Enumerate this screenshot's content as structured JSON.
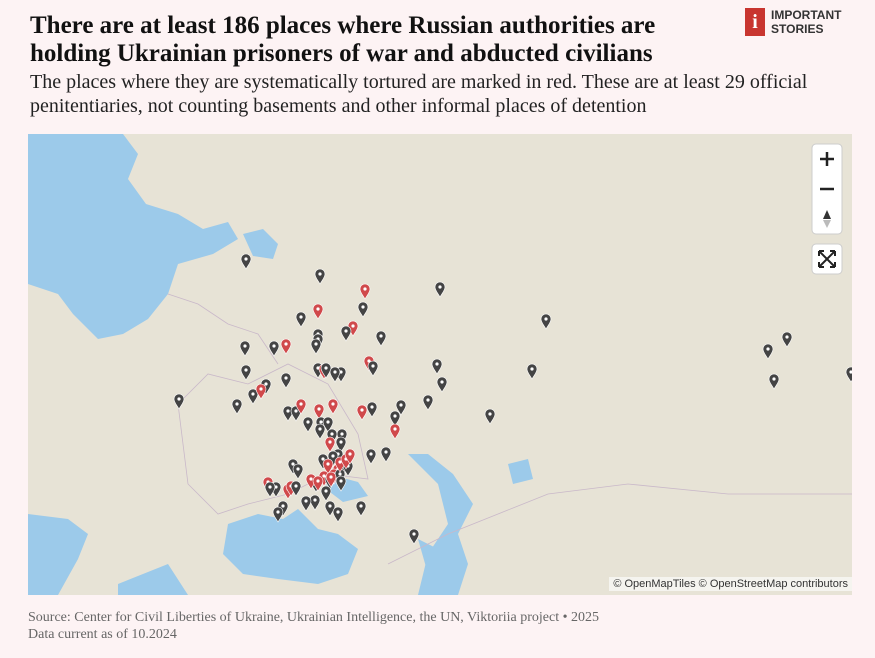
{
  "header": {
    "title": "There are at least 186 places where Russian authorities are holding Ukrainian prisoners of war and abducted civilians",
    "subtitle": "The places where they are systematically tortured are marked in red. These are at least 29 official penitentiaries, not counting basements and other informal places of detention"
  },
  "logo": {
    "icon": "i",
    "line1": "IMPORTANT",
    "line2": "STORIES"
  },
  "map": {
    "attribution": "© OpenMapTiles © OpenStreetMap contributors"
  },
  "footer": {
    "source": "Source: Center for Civil Liberties of Ukraine, Ukrainian Intelligence, the UN, Viktoriia project • 2025",
    "date": "Data current as of 10.2024"
  }
}
